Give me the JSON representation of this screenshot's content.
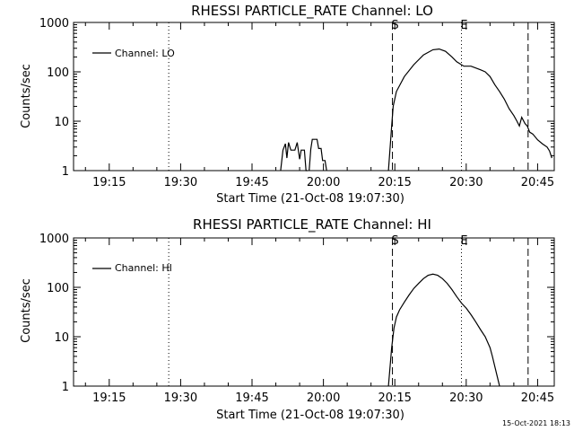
{
  "chart_data": [
    {
      "type": "line",
      "title": "RHESSI PARTICLE_RATE Channel: LO",
      "ylabel": "Counts/sec",
      "xlabel": "Start Time (21-Oct-08 19:07:30)",
      "y_scale": "log",
      "ylim": [
        1,
        1000
      ],
      "xlim": [
        "19:07:30",
        "20:48:30"
      ],
      "x_ticks": [
        "19:15",
        "19:30",
        "19:45",
        "20:00",
        "20:15",
        "20:30",
        "20:45"
      ],
      "y_ticks": [
        1,
        10,
        100,
        1000
      ],
      "y_tick_labels": [
        "1",
        "10",
        "100",
        "1000"
      ],
      "legend": {
        "placement": "top-left",
        "entries": [
          "Channel: LO"
        ]
      },
      "markers": [
        {
          "time": "19:27:30",
          "style": "dotted",
          "label": ""
        },
        {
          "time": "20:14:30",
          "style": "dashed",
          "label": "S"
        },
        {
          "time": "20:29:00",
          "style": "dotted",
          "label": "E"
        },
        {
          "time": "20:43:00",
          "style": "dashed",
          "label": ""
        },
        {
          "time": "20:48:30",
          "style": "dotted",
          "label": ""
        }
      ],
      "series": [
        {
          "name": "Channel: LO",
          "segments": [
            [
              [
                "19:51:00",
                1
              ],
              [
                "19:51:30",
                2.6
              ],
              [
                "19:52:00",
                3.5
              ],
              [
                "19:52:20",
                1.8
              ],
              [
                "19:52:40",
                3.7
              ],
              [
                "19:53:10",
                2.6
              ],
              [
                "19:54:00",
                2.6
              ],
              [
                "19:54:30",
                3.7
              ],
              [
                "19:55:00",
                1.7
              ],
              [
                "19:55:20",
                2.6
              ],
              [
                "19:56:00",
                2.6
              ],
              [
                "19:56:20",
                1
              ],
              [
                "19:56:40",
                1
              ]
            ],
            [
              [
                "19:57:00",
                1
              ],
              [
                "19:57:20",
                2.7
              ],
              [
                "19:57:40",
                4.3
              ],
              [
                "19:58:40",
                4.3
              ],
              [
                "19:59:00",
                2.8
              ],
              [
                "19:59:30",
                2.8
              ],
              [
                "19:59:50",
                1.6
              ],
              [
                "20:00:20",
                1.6
              ],
              [
                "20:00:40",
                1
              ]
            ],
            [
              [
                "20:13:40",
                1
              ],
              [
                "20:14:20",
                8
              ],
              [
                "20:14:40",
                20
              ],
              [
                "20:15:20",
                40
              ],
              [
                "20:17:00",
                80
              ],
              [
                "20:19:00",
                140
              ],
              [
                "20:21:00",
                220
              ],
              [
                "20:23:00",
                280
              ],
              [
                "20:24:20",
                290
              ],
              [
                "20:25:40",
                260
              ],
              [
                "20:27:00",
                200
              ],
              [
                "20:28:00",
                160
              ],
              [
                "20:29:30",
                130
              ],
              [
                "20:31:00",
                130
              ],
              [
                "20:33:00",
                110
              ],
              [
                "20:34:00",
                100
              ],
              [
                "20:35:00",
                80
              ],
              [
                "20:36:00",
                55
              ],
              [
                "20:37:00",
                40
              ],
              [
                "20:38:00",
                28
              ],
              [
                "20:39:00",
                18
              ],
              [
                "20:40:00",
                13
              ],
              [
                "20:40:40",
                10
              ],
              [
                "20:41:10",
                8
              ],
              [
                "20:41:40",
                12
              ],
              [
                "20:42:20",
                9
              ],
              [
                "20:42:50",
                8
              ],
              [
                "20:43:20",
                6
              ],
              [
                "20:44:00",
                5.5
              ],
              [
                "20:45:00",
                4.2
              ],
              [
                "20:46:00",
                3.5
              ],
              [
                "20:47:00",
                3
              ],
              [
                "20:47:30",
                2.5
              ],
              [
                "20:48:00",
                1.8
              ]
            ]
          ]
        }
      ]
    },
    {
      "type": "line",
      "title": "RHESSI PARTICLE_RATE Channel: HI",
      "ylabel": "Counts/sec",
      "xlabel": "Start Time (21-Oct-08 19:07:30)",
      "y_scale": "log",
      "ylim": [
        1,
        1000
      ],
      "xlim": [
        "19:07:30",
        "20:48:30"
      ],
      "x_ticks": [
        "19:15",
        "19:30",
        "19:45",
        "20:00",
        "20:15",
        "20:30",
        "20:45"
      ],
      "y_ticks": [
        1,
        10,
        100,
        1000
      ],
      "y_tick_labels": [
        "1",
        "10",
        "100",
        "1000"
      ],
      "legend": {
        "placement": "top-left",
        "entries": [
          "Channel: HI"
        ]
      },
      "markers": [
        {
          "time": "19:27:30",
          "style": "dotted",
          "label": ""
        },
        {
          "time": "20:14:30",
          "style": "dashed",
          "label": "S"
        },
        {
          "time": "20:29:00",
          "style": "dotted",
          "label": "E"
        },
        {
          "time": "20:43:00",
          "style": "dashed",
          "label": ""
        },
        {
          "time": "20:48:30",
          "style": "dotted",
          "label": ""
        }
      ],
      "series": [
        {
          "name": "Channel: HI",
          "segments": [
            [
              [
                "20:13:40",
                1
              ],
              [
                "20:14:20",
                6
              ],
              [
                "20:14:50",
                15
              ],
              [
                "20:15:20",
                25
              ],
              [
                "20:16:00",
                35
              ],
              [
                "20:17:00",
                50
              ],
              [
                "20:18:00",
                70
              ],
              [
                "20:19:00",
                95
              ],
              [
                "20:20:00",
                120
              ],
              [
                "20:21:00",
                150
              ],
              [
                "20:22:00",
                175
              ],
              [
                "20:23:00",
                185
              ],
              [
                "20:24:00",
                175
              ],
              [
                "20:25:00",
                150
              ],
              [
                "20:26:00",
                120
              ],
              [
                "20:27:00",
                90
              ],
              [
                "20:28:00",
                65
              ],
              [
                "20:29:00",
                48
              ],
              [
                "20:30:00",
                38
              ],
              [
                "20:31:00",
                28
              ],
              [
                "20:32:00",
                20
              ],
              [
                "20:33:00",
                14
              ],
              [
                "20:34:00",
                10
              ],
              [
                "20:35:00",
                6
              ],
              [
                "20:35:30",
                4
              ],
              [
                "20:36:00",
                2.5
              ],
              [
                "20:36:30",
                1.6
              ],
              [
                "20:37:00",
                1
              ]
            ]
          ]
        }
      ]
    }
  ],
  "footer": {
    "timestamp": "15-Oct-2021 18:13"
  }
}
